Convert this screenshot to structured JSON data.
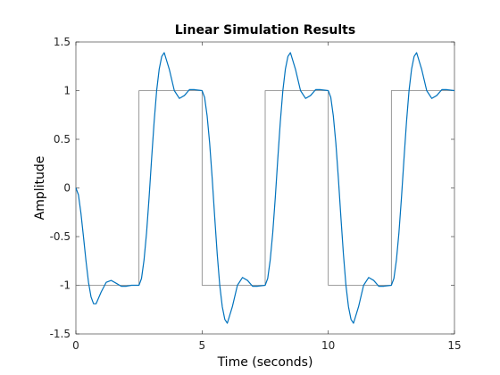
{
  "chart_data": {
    "type": "line",
    "title": "Linear Simulation Results",
    "xlabel": "Time (seconds)",
    "ylabel": "Amplitude",
    "xlim": [
      0,
      15
    ],
    "ylim": [
      -1.5,
      1.5
    ],
    "xticks": [
      0,
      5,
      10,
      15
    ],
    "yticks": [
      -1.5,
      -1,
      -0.5,
      0,
      0.5,
      1,
      1.5
    ],
    "xtick_labels": [
      "0",
      "5",
      "10",
      "15"
    ],
    "ytick_labels": [
      "-1.5",
      "-1",
      "-0.5",
      "0",
      "0.5",
      "1",
      "1.5"
    ],
    "grid": false,
    "series": [
      {
        "color": "#808080",
        "x": [
          0,
          2.5,
          2.5,
          5,
          5,
          7.5,
          7.5,
          10,
          10,
          12.5,
          12.5,
          15,
          15
        ],
        "values": [
          -1,
          -1,
          1,
          1,
          -1,
          -1,
          1,
          1,
          -1,
          -1,
          1,
          1,
          -0.65
        ]
      },
      {
        "color": "#0072BD",
        "x": [
          0,
          0.1,
          0.2,
          0.3,
          0.4,
          0.5,
          0.6,
          0.7,
          0.8,
          1.0,
          1.2,
          1.4,
          1.6,
          1.8,
          2.0,
          2.2,
          2.5,
          2.6,
          2.7,
          2.8,
          2.9,
          3.0,
          3.1,
          3.2,
          3.3,
          3.4,
          3.5,
          3.7,
          3.9,
          4.1,
          4.3,
          4.5,
          4.7,
          5.0,
          5.1,
          5.2,
          5.3,
          5.4,
          5.5,
          5.6,
          5.7,
          5.8,
          5.9,
          6.0,
          6.2,
          6.4,
          6.6,
          6.8,
          7.0,
          7.2,
          7.5,
          7.6,
          7.7,
          7.8,
          7.9,
          8.0,
          8.1,
          8.2,
          8.3,
          8.4,
          8.5,
          8.7,
          8.9,
          9.1,
          9.3,
          9.5,
          9.7,
          10.0,
          10.1,
          10.2,
          10.3,
          10.4,
          10.5,
          10.6,
          10.7,
          10.8,
          10.9,
          11.0,
          11.2,
          11.4,
          11.6,
          11.8,
          12.0,
          12.2,
          12.5,
          12.6,
          12.7,
          12.8,
          12.9,
          13.0,
          13.1,
          13.2,
          13.3,
          13.4,
          13.5,
          13.7,
          13.9,
          14.1,
          14.3,
          14.5,
          14.7,
          15.0
        ],
        "values": [
          0,
          -0.07,
          -0.26,
          -0.5,
          -0.75,
          -0.97,
          -1.12,
          -1.19,
          -1.19,
          -1.07,
          -0.97,
          -0.95,
          -0.98,
          -1.01,
          -1.01,
          -1.0,
          -1.0,
          -0.93,
          -0.74,
          -0.46,
          -0.1,
          0.3,
          0.68,
          1.0,
          1.22,
          1.35,
          1.39,
          1.22,
          1.0,
          0.92,
          0.95,
          1.01,
          1.01,
          1.0,
          0.93,
          0.74,
          0.46,
          0.1,
          -0.3,
          -0.68,
          -1.0,
          -1.22,
          -1.35,
          -1.39,
          -1.22,
          -1.0,
          -0.92,
          -0.95,
          -1.01,
          -1.01,
          -1.0,
          -0.93,
          -0.74,
          -0.46,
          -0.1,
          0.3,
          0.68,
          1.0,
          1.22,
          1.35,
          1.39,
          1.22,
          1.0,
          0.92,
          0.95,
          1.01,
          1.01,
          1.0,
          0.93,
          0.74,
          0.46,
          0.1,
          -0.3,
          -0.68,
          -1.0,
          -1.22,
          -1.35,
          -1.39,
          -1.22,
          -1.0,
          -0.92,
          -0.95,
          -1.01,
          -1.01,
          -1.0,
          -0.93,
          -0.74,
          -0.46,
          -0.1,
          0.3,
          0.68,
          1.0,
          1.22,
          1.35,
          1.39,
          1.22,
          1.0,
          0.92,
          0.95,
          1.01,
          1.01,
          1.0
        ]
      }
    ]
  }
}
